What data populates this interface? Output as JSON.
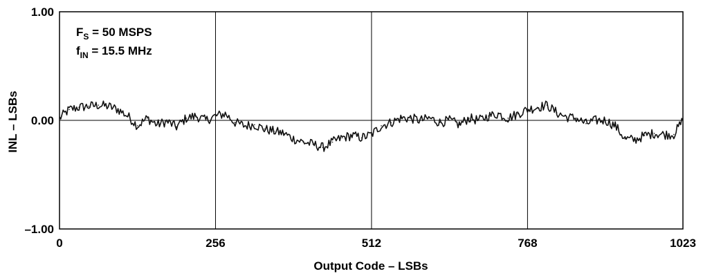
{
  "chart_data": {
    "type": "line",
    "title": "",
    "xlabel": "Output Code – LSBs",
    "ylabel": "INL – LSBs",
    "xlim": [
      0,
      1023
    ],
    "ylim": [
      -1.0,
      1.0
    ],
    "x_ticks": [
      0,
      256,
      512,
      768,
      1023
    ],
    "x_tick_labels": [
      "0",
      "256",
      "512",
      "768",
      "1023"
    ],
    "y_ticks": [
      -1.0,
      0.0,
      1.0
    ],
    "y_tick_labels": [
      "–1.00",
      "0.00",
      "1.00"
    ],
    "grid": "vertical lines at 256, 512, 768; horizontal line at 0.00",
    "annotations": [
      {
        "main": "F",
        "sub": "S",
        "rest": " = 50 MSPS"
      },
      {
        "main": "f",
        "sub": "IN",
        "rest": " = 15.5  MHz"
      }
    ],
    "series": [
      {
        "x": [
          0,
          16,
          32,
          48,
          64,
          80,
          96,
          112,
          128,
          144,
          160,
          176,
          192,
          208,
          224,
          240,
          256,
          272,
          288,
          304,
          320,
          336,
          352,
          368,
          384,
          400,
          416,
          432,
          448,
          464,
          480,
          496,
          512,
          528,
          544,
          560,
          576,
          592,
          608,
          624,
          640,
          656,
          672,
          688,
          704,
          720,
          736,
          752,
          768,
          784,
          800,
          816,
          832,
          848,
          864,
          880,
          896,
          912,
          928,
          944,
          960,
          976,
          992,
          1008,
          1023
        ],
        "values": [
          0.02,
          0.1,
          0.12,
          0.13,
          0.14,
          0.13,
          0.1,
          0.04,
          -0.05,
          0.02,
          -0.04,
          -0.01,
          -0.06,
          0.02,
          0.04,
          0.0,
          0.04,
          0.06,
          -0.02,
          -0.05,
          -0.04,
          -0.08,
          -0.1,
          -0.12,
          -0.17,
          -0.2,
          -0.22,
          -0.25,
          -0.2,
          -0.16,
          -0.14,
          -0.16,
          -0.13,
          -0.05,
          -0.02,
          0.02,
          0.02,
          0.0,
          0.02,
          -0.02,
          0.0,
          -0.04,
          0.02,
          0.0,
          0.04,
          0.06,
          0.02,
          0.06,
          0.1,
          0.12,
          0.14,
          0.07,
          0.03,
          0.02,
          -0.03,
          0.0,
          0.0,
          -0.05,
          -0.17,
          -0.18,
          -0.14,
          -0.12,
          -0.13,
          -0.13,
          0.0
        ]
      }
    ]
  }
}
